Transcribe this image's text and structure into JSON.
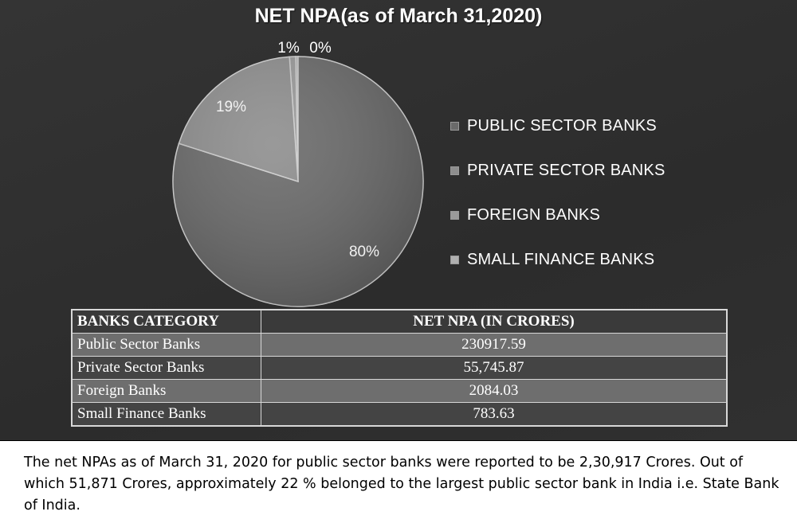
{
  "chart_data": {
    "type": "pie",
    "title": "NET NPA(as of March 31,2020)",
    "slices": [
      {
        "name": "PUBLIC SECTOR BANKS",
        "label": "80%",
        "value": 80,
        "color": "#6a6a6a"
      },
      {
        "name": "PRIVATE SECTOR BANKS",
        "label": "19%",
        "value": 19,
        "color": "#8e8e8e"
      },
      {
        "name": "FOREIGN BANKS",
        "label": "1%",
        "value": 0.8,
        "color": "#9a9a9a"
      },
      {
        "name": "SMALL FINANCE BANKS",
        "label": "0%",
        "value": 0.3,
        "color": "#b0b0b0"
      }
    ],
    "legend_position": "right"
  },
  "table": {
    "headers": [
      "BANKS CATEGORY",
      "NET NPA (IN CRORES)"
    ],
    "rows": [
      [
        "Public Sector Banks",
        "230917.59"
      ],
      [
        "Private Sector Banks",
        "55,745.87"
      ],
      [
        "Foreign Banks",
        "2084.03"
      ],
      [
        "Small Finance Banks",
        "783.63"
      ]
    ]
  },
  "caption": {
    "text": "The net NPAs as of March 31, 2020 for public sector banks were reported to be 2,30,917 Crores. Out of which 51,871 Crores, approximately 22 % belonged to the largest public sector bank in India i.e. State Bank of India."
  }
}
